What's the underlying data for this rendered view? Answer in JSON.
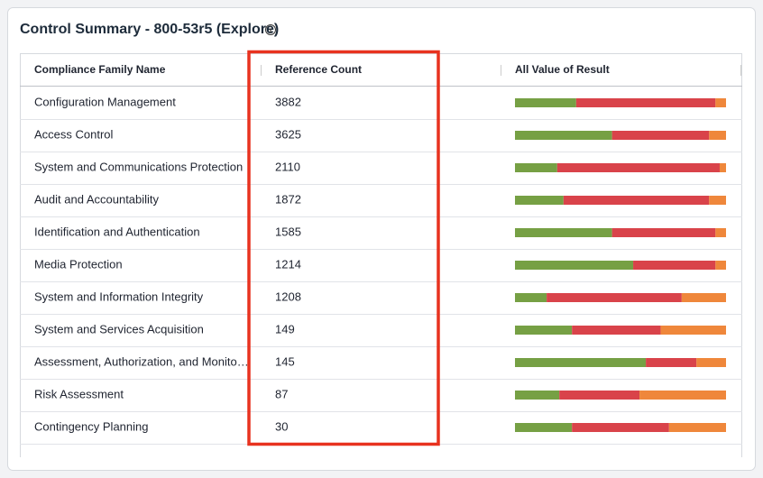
{
  "header": {
    "title": "Control Summary - 800-53r5 (Explore)"
  },
  "table": {
    "columns": [
      "Compliance Family Name",
      "Reference Count",
      "All Value of Result"
    ],
    "result_colors": [
      "#76a044",
      "#d9434a",
      "#ef873b"
    ],
    "rows": [
      {
        "name": "Configuration Management",
        "count": 3882,
        "result": [
          29,
          66,
          5
        ]
      },
      {
        "name": "Access Control",
        "count": 3625,
        "result": [
          46,
          46,
          8
        ]
      },
      {
        "name": "System and Communications Protection",
        "count": 2110,
        "result": [
          20,
          77,
          3
        ]
      },
      {
        "name": "Audit and Accountability",
        "count": 1872,
        "result": [
          23,
          69,
          8
        ]
      },
      {
        "name": "Identification and Authentication",
        "count": 1585,
        "result": [
          46,
          49,
          5
        ]
      },
      {
        "name": "Media Protection",
        "count": 1214,
        "result": [
          56,
          39,
          5
        ]
      },
      {
        "name": "System and Information Integrity",
        "count": 1208,
        "result": [
          15,
          64,
          21
        ]
      },
      {
        "name": "System and Services Acquisition",
        "count": 149,
        "result": [
          27,
          42,
          31
        ]
      },
      {
        "name": "Assessment, Authorization, and Monito…",
        "count": 145,
        "result": [
          62,
          24,
          14
        ]
      },
      {
        "name": "Risk Assessment",
        "count": 87,
        "result": [
          21,
          38,
          41
        ]
      },
      {
        "name": "Contingency Planning",
        "count": 30,
        "result": [
          27,
          46,
          27
        ]
      }
    ]
  }
}
